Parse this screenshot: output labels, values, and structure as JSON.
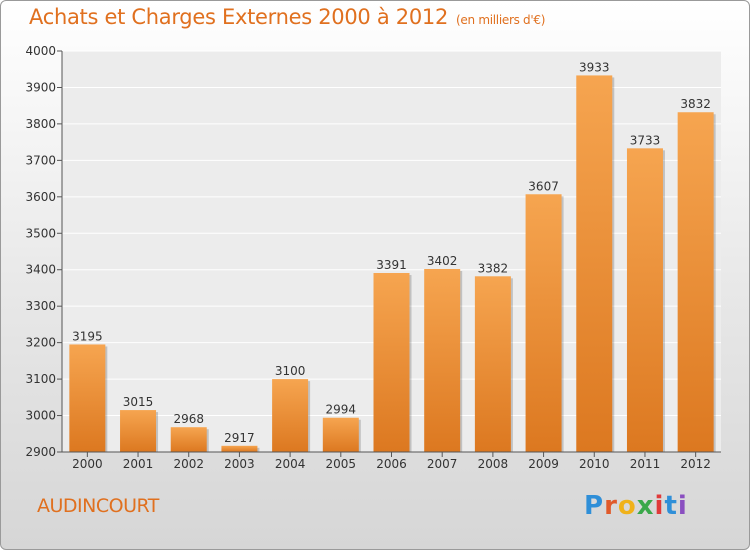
{
  "title": "Achats et Charges Externes 2000 à 2012",
  "subtitle": "(en milliers d'€)",
  "town": "AUDINCOURT",
  "logo": "Proxiti",
  "colors": {
    "accent": "#e0701f",
    "bar_top": "#f6a550",
    "bar_bottom": "#dc7820"
  },
  "chart_data": {
    "type": "bar",
    "categories": [
      "2000",
      "2001",
      "2002",
      "2003",
      "2004",
      "2005",
      "2006",
      "2007",
      "2008",
      "2009",
      "2010",
      "2011",
      "2012"
    ],
    "values": [
      3195,
      3015,
      2968,
      2917,
      3100,
      2994,
      3391,
      3402,
      3382,
      3607,
      3933,
      3733,
      3832
    ],
    "ylim": [
      2900,
      4000
    ],
    "yticks": [
      2900,
      3000,
      3100,
      3200,
      3300,
      3400,
      3500,
      3600,
      3700,
      3800,
      3900,
      4000
    ],
    "grid": true
  }
}
